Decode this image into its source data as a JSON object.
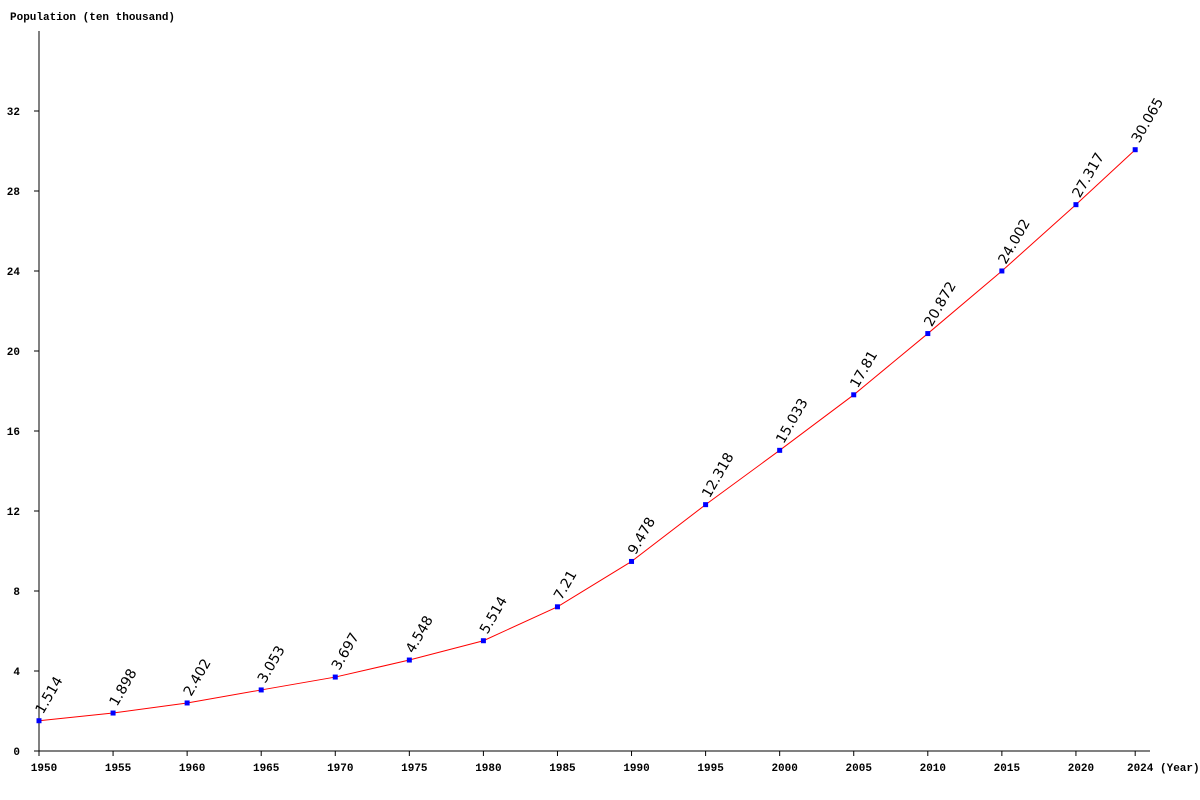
{
  "chart_data": {
    "type": "line",
    "y_label": "Population (ten thousand)",
    "x_label": "(Year)",
    "x": [
      1950,
      1955,
      1960,
      1965,
      1970,
      1975,
      1980,
      1985,
      1990,
      1995,
      2000,
      2005,
      2010,
      2015,
      2020,
      2024
    ],
    "values": [
      1.514,
      1.898,
      2.402,
      3.053,
      3.697,
      4.548,
      5.514,
      7.21,
      9.478,
      12.318,
      15.033,
      17.81,
      20.872,
      24.002,
      27.317,
      30.065
    ],
    "color": "#ff0000",
    "marker_color": "#0000ff",
    "xlim": [
      1950,
      2025
    ],
    "xticks": [
      1950,
      1955,
      1960,
      1965,
      1970,
      1975,
      1980,
      1985,
      1990,
      1995,
      2000,
      2005,
      2010,
      2015,
      2020,
      2024
    ],
    "ylim": [
      0,
      36
    ],
    "yticks": [
      0,
      4,
      8,
      12,
      16,
      20,
      24,
      28,
      32
    ],
    "grid": false
  }
}
